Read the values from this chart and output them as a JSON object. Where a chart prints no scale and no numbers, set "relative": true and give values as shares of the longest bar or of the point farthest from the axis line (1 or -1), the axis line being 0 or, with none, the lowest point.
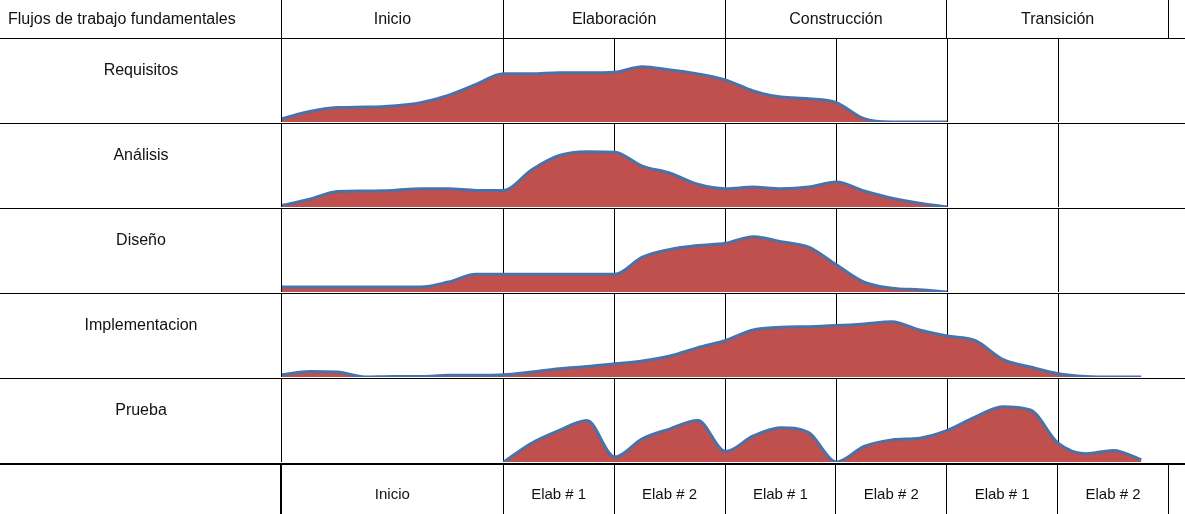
{
  "chart_data": [
    {
      "type": "other",
      "title": "Flujos de trabajo fundamentales",
      "annotations": [
        "Inicio",
        "Elaboración",
        "Construcción",
        "Transición"
      ]
    },
    {
      "type": "area",
      "ylabel": "Requisitos",
      "relative": true,
      "grid": "x",
      "categories": [
        null,
        null,
        null,
        null,
        null,
        null,
        null,
        null,
        null,
        null,
        null,
        null,
        null,
        null,
        null,
        null,
        null,
        null,
        null,
        null,
        null,
        null,
        null,
        null,
        null,
        null,
        null,
        null,
        null,
        null,
        null,
        null,
        null
      ],
      "series": [
        {
          "color": "#c0504d",
          "values": [
            0.06,
            0.19,
            0.26,
            0.27,
            0.29,
            0.35,
            0.48,
            0.68,
            0.87,
            0.87,
            0.89,
            0.89,
            0.9,
            1,
            0.94,
            0.87,
            0.76,
            0.56,
            0.45,
            0.42,
            0.35,
            0.06,
            0,
            0,
            0,
            null,
            null,
            null,
            null,
            null,
            null,
            null,
            null
          ]
        }
      ]
    },
    {
      "type": "area",
      "ylabel": "Análisis",
      "relative": true,
      "grid": "x",
      "categories": [
        null,
        null,
        null,
        null,
        null,
        null,
        null,
        null,
        null,
        null,
        null,
        null,
        null,
        null,
        null,
        null,
        null,
        null,
        null,
        null,
        null,
        null,
        null,
        null,
        null,
        null,
        null,
        null,
        null,
        null,
        null,
        null,
        null
      ],
      "series": [
        {
          "color": "#c0504d",
          "values": [
            0.03,
            0.14,
            0.28,
            0.29,
            0.3,
            0.33,
            0.33,
            0.3,
            0.3,
            0.67,
            0.93,
            1,
            0.99,
            0.74,
            0.61,
            0.41,
            0.33,
            0.36,
            0.33,
            0.36,
            0.45,
            0.29,
            0.16,
            0.07,
            0,
            null,
            null,
            null,
            null,
            null,
            null,
            null,
            null
          ]
        }
      ]
    },
    {
      "type": "area",
      "ylabel": "Diseño",
      "relative": true,
      "grid": "x",
      "categories": [
        null,
        null,
        null,
        null,
        null,
        null,
        null,
        null,
        null,
        null,
        null,
        null,
        null,
        null,
        null,
        null,
        null,
        null,
        null,
        null,
        null,
        null,
        null,
        null,
        null,
        null,
        null,
        null,
        null,
        null,
        null,
        null,
        null
      ],
      "series": [
        {
          "color": "#c0504d",
          "values": [
            0.09,
            0.09,
            0.09,
            0.09,
            0.09,
            0.09,
            0.18,
            0.32,
            0.32,
            0.32,
            0.32,
            0.32,
            0.32,
            0.63,
            0.77,
            0.84,
            0.88,
            1,
            0.91,
            0.81,
            0.49,
            0.18,
            0.07,
            0.04,
            0,
            null,
            null,
            null,
            null,
            null,
            null,
            null,
            null
          ]
        }
      ]
    },
    {
      "type": "area",
      "ylabel": "Implementacion",
      "relative": true,
      "grid": "x",
      "categories": [
        null,
        null,
        null,
        null,
        null,
        null,
        null,
        null,
        null,
        null,
        null,
        null,
        null,
        null,
        null,
        null,
        null,
        null,
        null,
        null,
        null,
        null,
        null,
        null,
        null,
        null,
        null,
        null,
        null,
        null,
        null,
        null,
        null
      ],
      "series": [
        {
          "color": "#c0504d",
          "values": [
            0.04,
            0.1,
            0.09,
            0,
            0.01,
            0.01,
            0.03,
            0.03,
            0.04,
            0.09,
            0.15,
            0.19,
            0.24,
            0.29,
            0.38,
            0.53,
            0.66,
            0.85,
            0.9,
            0.91,
            0.93,
            0.96,
            1,
            0.85,
            0.74,
            0.66,
            0.32,
            0.18,
            0.06,
            0.01,
            0,
            0,
            null
          ]
        }
      ]
    },
    {
      "type": "area",
      "ylabel": "Prueba",
      "relative": true,
      "grid": "x",
      "categories": [
        null,
        null,
        null,
        null,
        null,
        null,
        null,
        null,
        null,
        null,
        null,
        null,
        null,
        null,
        null,
        null,
        null,
        null,
        null,
        null,
        null,
        null,
        null,
        null,
        null,
        null,
        null,
        null,
        null,
        null,
        null,
        null,
        null
      ],
      "series": [
        {
          "color": "#c0504d",
          "values": [
            null,
            null,
            null,
            null,
            null,
            null,
            null,
            null,
            0,
            0.34,
            0.57,
            0.75,
            0.09,
            0.42,
            0.6,
            0.75,
            0.19,
            0.47,
            0.62,
            0.53,
            0,
            0.28,
            0.4,
            0.43,
            0.57,
            0.81,
            1,
            0.94,
            0.34,
            0.15,
            0.21,
            0.04,
            null
          ]
        }
      ]
    },
    {
      "type": "other",
      "annotations": [
        "Inicio",
        "Elab # 1",
        "Elab # 2",
        "Elab # 1",
        "Elab # 2",
        "Elab # 1",
        "Elab # 2"
      ]
    }
  ]
}
